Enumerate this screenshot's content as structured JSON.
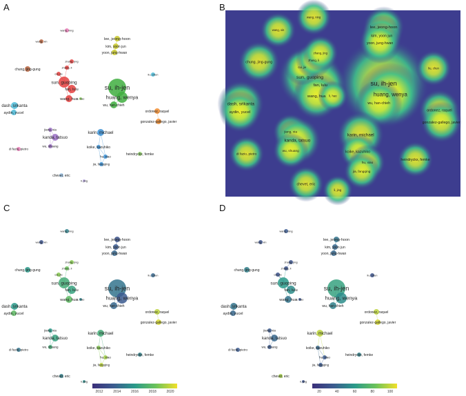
{
  "panels": [
    {
      "letter": "A",
      "mode": "cluster"
    },
    {
      "letter": "B",
      "mode": "density"
    },
    {
      "letter": "C",
      "mode": "overlay-year"
    },
    {
      "letter": "D",
      "mode": "overlay-citations"
    }
  ],
  "colors": {
    "red": "#e4413f",
    "green": "#3fae3f",
    "blue_cluster": "#3a8fd3",
    "yellow": "#c9c92a",
    "cyan": "#4ab8d6",
    "orange": "#f08c30",
    "purple": "#9a6fc4",
    "pink": "#e87ab5",
    "brown": "#b5623d",
    "lightblue": "#9ec5e8",
    "lightgreen": "#8fd06a",
    "lavender": "#b9a8e0",
    "density_bg": "#3d3d8f"
  },
  "nodes": [
    {
      "id": "su",
      "label": "su, ih-jen",
      "ax": 170,
      "ay": 127,
      "r": 13,
      "fs": 9,
      "cluster": "green",
      "year": 0.35,
      "cit": 0.55
    },
    {
      "id": "huang",
      "label": "huang, wenya",
      "ax": 177,
      "ay": 141,
      "r": 8,
      "fs": 7.5,
      "cluster": "green",
      "year": 0.25,
      "cit": 0.45
    },
    {
      "id": "wu",
      "label": "wu, han-chieh",
      "ax": 165,
      "ay": 152,
      "r": 5,
      "fs": 5,
      "cluster": "green",
      "year": 0.3,
      "cit": 0.4
    },
    {
      "id": "sun",
      "label": "sun, guoping",
      "ax": 93,
      "ay": 119,
      "r": 8,
      "fs": 6.5,
      "cluster": "red",
      "year": 0.6,
      "cit": 0.5
    },
    {
      "id": "fan",
      "label": "fan, lulu",
      "ax": 104,
      "ay": 129,
      "r": 6,
      "fs": 5.5,
      "cluster": "red",
      "year": 0.55,
      "cit": 0.45
    },
    {
      "id": "wang_hua",
      "label": "wang, hua",
      "ax": 100,
      "ay": 143,
      "r": 5,
      "fs": 5.5,
      "cluster": "red",
      "year": 0.7,
      "cit": 0.35
    },
    {
      "id": "cui",
      "label": "cui, jie",
      "ax": 85,
      "ay": 107,
      "r": 3,
      "fs": 4,
      "cluster": "red",
      "year": 0.8,
      "cit": 0.2
    },
    {
      "id": "zhang_li",
      "label": "zhang, li",
      "ax": 97,
      "ay": 98,
      "r": 3,
      "fs": 4,
      "cluster": "red",
      "year": 0.75,
      "cit": 0.2
    },
    {
      "id": "zhang_j",
      "label": "zhang, jing",
      "ax": 104,
      "ay": 89,
      "r": 3,
      "fs": 4,
      "cluster": "red",
      "year": 0.8,
      "cit": 0.2
    },
    {
      "id": "wang_n",
      "label": "wang, ning",
      "ax": 97,
      "ay": 44,
      "r": 3,
      "fs": 4,
      "cluster": "pink",
      "year": 0.4,
      "cit": 0.25
    },
    {
      "id": "wang_x",
      "label": "wang, xin",
      "ax": 60,
      "ay": 60,
      "r": 3,
      "fs": 4,
      "cluster": "brown",
      "year": 0.2,
      "cit": 0.2
    },
    {
      "id": "lee",
      "label": "lee, jeong-hoon",
      "ax": 170,
      "ay": 56,
      "r": 4,
      "fs": 5.5,
      "cluster": "yellow",
      "year": 0.2,
      "cit": 0.35
    },
    {
      "id": "kim",
      "label": "kim, yoon jun",
      "ax": 168,
      "ay": 67,
      "r": 4,
      "fs": 5,
      "cluster": "yellow",
      "year": 0.25,
      "cit": 0.3
    },
    {
      "id": "yoon",
      "label": "yoon, jung-hwan",
      "ax": 166,
      "ay": 76,
      "r": 4,
      "fs": 5,
      "cluster": "yellow",
      "year": 0.3,
      "cit": 0.3
    },
    {
      "id": "chung",
      "label": "chung, jing-gung",
      "ax": 40,
      "ay": 100,
      "r": 4,
      "fs": 5,
      "cluster": "brown",
      "year": 0.5,
      "cit": 0.4
    },
    {
      "id": "liu",
      "label": "liu, chun",
      "ax": 222,
      "ay": 108,
      "r": 3,
      "fs": 4,
      "cluster": "cyan",
      "year": 0.3,
      "cit": 0.2
    },
    {
      "id": "dash",
      "label": "dash, srikanta",
      "ax": 21,
      "ay": 153,
      "r": 5,
      "fs": 6,
      "cluster": "cyan",
      "year": 0.5,
      "cit": 0.35
    },
    {
      "id": "aydin",
      "label": "aydin, yucel",
      "ax": 20,
      "ay": 163,
      "r": 4,
      "fs": 5.5,
      "cluster": "cyan",
      "year": 0.7,
      "cit": 0.3
    },
    {
      "id": "ordonez",
      "label": "ordonez, raquel",
      "ax": 228,
      "ay": 161,
      "r": 4,
      "fs": 5,
      "cluster": "orange",
      "year": 0.9,
      "cit": 0.9
    },
    {
      "id": "gonzalez",
      "label": "gonzalez-gallego, javier",
      "ax": 230,
      "ay": 176,
      "r": 4,
      "fs": 5,
      "cluster": "orange",
      "year": 0.95,
      "cit": 0.95
    },
    {
      "id": "li_hao",
      "label": "li, hao",
      "ax": 117,
      "ay": 143,
      "r": 2,
      "fs": 4,
      "cluster": "lightgreen",
      "year": 0.4,
      "cit": 0.2
    },
    {
      "id": "karin",
      "label": "karin, michael",
      "ax": 146,
      "ay": 192,
      "r": 5,
      "fs": 6,
      "cluster": "blue_cluster",
      "year": 0.6,
      "cit": 0.9
    },
    {
      "id": "jiang",
      "label": "jiang, xia",
      "ax": 73,
      "ay": 188,
      "r": 3,
      "fs": 4.5,
      "cluster": "purple",
      "year": 0.5,
      "cit": 0.25
    },
    {
      "id": "kanda",
      "label": "kanda, tatsuo",
      "ax": 80,
      "ay": 199,
      "r": 5,
      "fs": 6,
      "cluster": "purple",
      "year": 0.55,
      "cit": 0.3
    },
    {
      "id": "wu_s",
      "label": "wu, shuang",
      "ax": 73,
      "ay": 212,
      "r": 3,
      "fs": 4.5,
      "cluster": "purple",
      "year": 0.6,
      "cit": 0.25
    },
    {
      "id": "difazio",
      "label": "di fazio, pietro",
      "ax": 27,
      "ay": 216,
      "r": 3,
      "fs": 4.5,
      "cluster": "pink",
      "year": 0.35,
      "cit": 0.25
    },
    {
      "id": "koike",
      "label": "koike, kazuhiko",
      "ax": 143,
      "ay": 213,
      "r": 3,
      "fs": 5,
      "cluster": "blue_cluster",
      "year": 0.8,
      "cit": 0.3
    },
    {
      "id": "hu",
      "label": "hu, xiao",
      "ax": 153,
      "ay": 227,
      "r": 3,
      "fs": 4.5,
      "cluster": "blue_cluster",
      "year": 0.85,
      "cit": 0.25
    },
    {
      "id": "jia",
      "label": "jia, fangqing",
      "ax": 147,
      "ay": 238,
      "r": 3,
      "fs": 4.5,
      "cluster": "blue_cluster",
      "year": 0.9,
      "cit": 0.25
    },
    {
      "id": "heindryckx",
      "label": "heindryckx, femke",
      "ax": 203,
      "ay": 223,
      "r": 3,
      "fs": 5,
      "cluster": "lightgreen",
      "year": 0.4,
      "cit": 0.4
    },
    {
      "id": "chevet",
      "label": "chevet, eric",
      "ax": 89,
      "ay": 254,
      "r": 3,
      "fs": 5,
      "cluster": "lightblue",
      "year": 0.4,
      "cit": 0.85
    },
    {
      "id": "li_jing",
      "label": "li, jing",
      "ax": 122,
      "ay": 262,
      "r": 2,
      "fs": 4,
      "cluster": "lavender",
      "year": 0.45,
      "cit": 0.2
    }
  ],
  "legends": {
    "C": {
      "ticks": [
        "2012",
        "2014",
        "2016",
        "2018",
        "2020"
      ]
    },
    "D": {
      "ticks": [
        "20",
        "40",
        "60",
        "80",
        "100"
      ]
    }
  }
}
